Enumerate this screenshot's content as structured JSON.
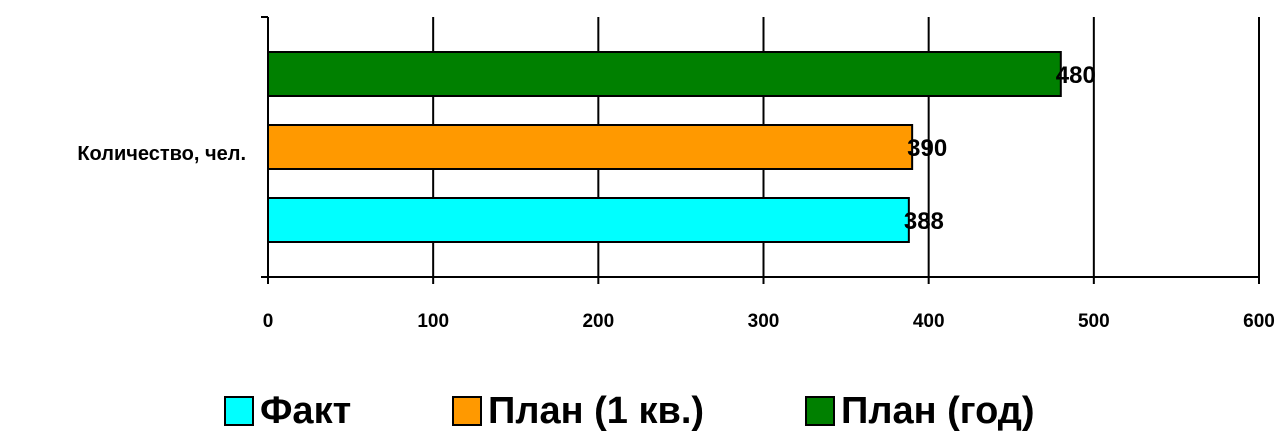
{
  "chart_data": {
    "type": "bar",
    "orientation": "horizontal",
    "categories": [
      "Количество, чел."
    ],
    "series": [
      {
        "name": "Факт",
        "values": [
          388
        ],
        "color": "#00FFFF"
      },
      {
        "name": "План (1 кв.)",
        "values": [
          390
        ],
        "color": "#FF9900"
      },
      {
        "name": "План (год)",
        "values": [
          480
        ],
        "color": "#008000"
      }
    ],
    "xlim": [
      0,
      600
    ],
    "xticks": [
      0,
      100,
      200,
      300,
      400,
      500,
      600
    ],
    "data_labels": [
      "388",
      "390",
      "480"
    ],
    "vertical_gridlines": true,
    "legend_position": "bottom"
  }
}
